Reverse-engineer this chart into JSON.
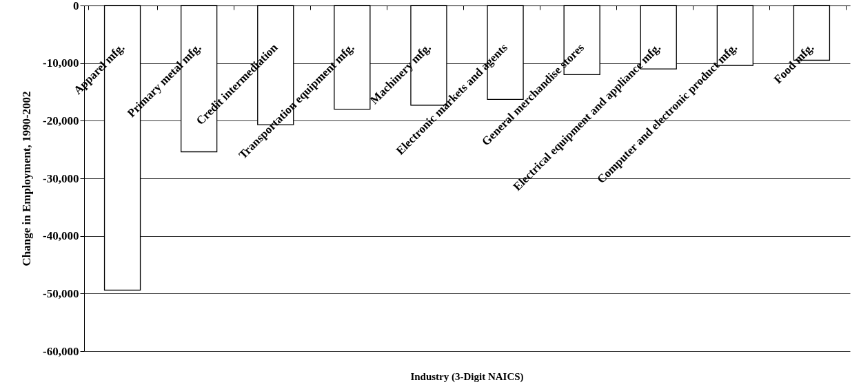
{
  "chart_data": {
    "type": "bar",
    "xlabel": "Industry (3-Digit NAICS)",
    "ylabel": "Change in Employment, 1990-2002",
    "categories": [
      "Apparel mfg.",
      "Primary metal mfg.",
      "Credit intermediation",
      "Transportation equipment mfg.",
      "Machinery mfg.",
      "Electronic markets and agents",
      "General merchandise stores",
      "Electrical equipment and appliance mfg.",
      "Computer and electronic product mfg.",
      "Food mfg."
    ],
    "values": [
      -49400,
      -25400,
      -20700,
      -18000,
      -17300,
      -16300,
      -12000,
      -11000,
      -10400,
      -9500
    ],
    "color": "#ffffff",
    "ylim": [
      -60000,
      0
    ],
    "yticks": [
      {
        "value": -60000,
        "label": "-60,000"
      },
      {
        "value": -50000,
        "label": "-50,000"
      },
      {
        "value": -40000,
        "label": "-40,000"
      },
      {
        "value": -30000,
        "label": "-30,000"
      },
      {
        "value": -20000,
        "label": "-20,000"
      },
      {
        "value": -10000,
        "label": "-10,000"
      },
      0
    ],
    "grid": "y"
  }
}
